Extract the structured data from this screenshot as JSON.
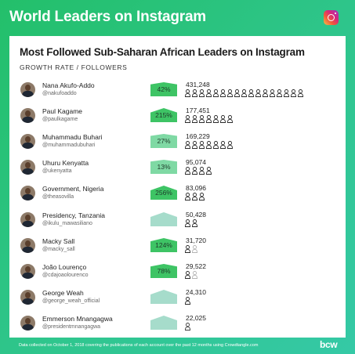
{
  "header": {
    "title": "World Leaders on Instagram"
  },
  "logo_icon": "instagram-icon",
  "colors": {
    "background": "#2ec58a",
    "growth_high": "#3ec465",
    "growth_mid": "#7fd9a4",
    "growth_low": "#a6dccb"
  },
  "chart_data": {
    "type": "table",
    "title": "Most Followed Sub-Saharan African Leaders on Instagram",
    "subtitle": "GROWTH RATE / FOLLOWERS",
    "columns": [
      "GROWTH RATE",
      "FOLLOWERS"
    ],
    "person_icon_unit": "each person icon ≈ 25,000 followers",
    "rows": [
      {
        "name": "Nana Akufo-Addo",
        "handle": "@nakufoaddo",
        "growth_label": "42%",
        "growth": 42,
        "followers_label": "431,248",
        "followers": 431248,
        "icons": 17
      },
      {
        "name": "Paul Kagame",
        "handle": "@paulkagame",
        "growth_label": "215%",
        "growth": 215,
        "followers_label": "177,451",
        "followers": 177451,
        "icons": 7
      },
      {
        "name": "Muhammadu Buhari",
        "handle": "@muhammadubuhari",
        "growth_label": "27%",
        "growth": 27,
        "followers_label": "169,229",
        "followers": 169229,
        "icons": 7
      },
      {
        "name": "Uhuru Kenyatta",
        "handle": "@ukenyatta",
        "growth_label": "13%",
        "growth": 13,
        "followers_label": "95,074",
        "followers": 95074,
        "icons": 4
      },
      {
        "name": "Government, Nigeria",
        "handle": "@theasovilla",
        "growth_label": "256%",
        "growth": 256,
        "followers_label": "83,096",
        "followers": 83096,
        "icons": 3
      },
      {
        "name": "Presidency, Tanzania",
        "handle": "@ikulu_mawasiliano",
        "growth_label": "",
        "growth": null,
        "followers_label": "50,428",
        "followers": 50428,
        "icons": 2
      },
      {
        "name": "Macky Sall",
        "handle": "@macky_sall",
        "growth_label": "124%",
        "growth": 124,
        "followers_label": "31,720",
        "followers": 31720,
        "icons": 1.3
      },
      {
        "name": "João Lourenço",
        "handle": "@cdajoaolourenco",
        "growth_label": "78%",
        "growth": 78,
        "followers_label": "29,522",
        "followers": 29522,
        "icons": 1.2
      },
      {
        "name": "George Weah",
        "handle": "@george_weah_official",
        "growth_label": "",
        "growth": null,
        "followers_label": "24,310",
        "followers": 24310,
        "icons": 1
      },
      {
        "name": "Emmerson Mnangagwa",
        "handle": "@presidentmnangagwa",
        "growth_label": "",
        "growth": null,
        "followers_label": "22,025",
        "followers": 22025,
        "icons": 0.9
      }
    ]
  },
  "footer": {
    "note": "Data collected on October 1, 2018 covering the publications of each account over the past 12 months using Crowdtangle.com",
    "brand": "bcw"
  }
}
